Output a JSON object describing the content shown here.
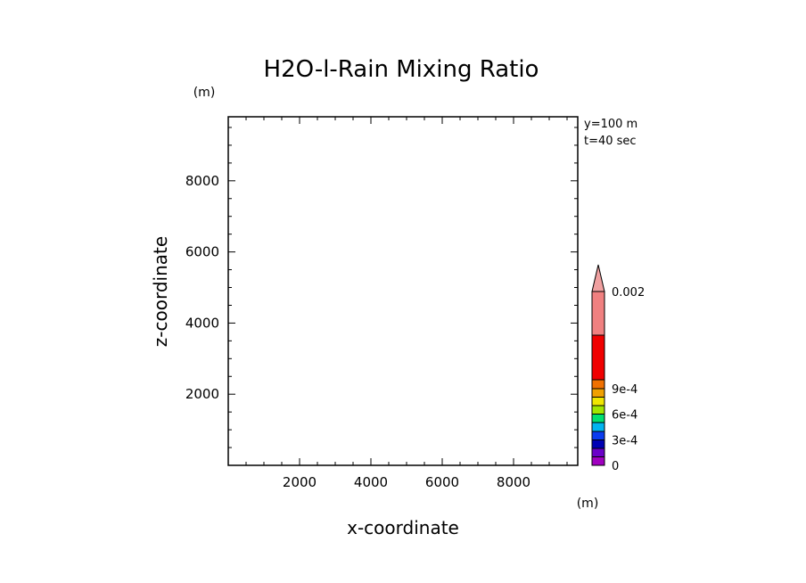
{
  "chart_data": {
    "type": "heatmap",
    "title": "H2O-l-Rain Mixing Ratio",
    "xlabel": "x-coordinate",
    "ylabel": "z-coordinate",
    "x_unit": "(m)",
    "y_unit": "(m)",
    "xlim": [
      0,
      9800
    ],
    "ylim": [
      0,
      9800
    ],
    "x_ticks": [
      2000,
      4000,
      6000,
      8000
    ],
    "y_ticks": [
      2000,
      4000,
      6000,
      8000
    ],
    "annotations": [
      "y=100 m",
      "t=40 sec"
    ],
    "field_values": [],
    "colorbar": {
      "levels": [
        0,
        0.0001,
        0.0002,
        0.0003,
        0.0004,
        0.0005,
        0.0006,
        0.0007,
        0.0008,
        0.0009,
        0.001,
        0.0015,
        0.002
      ],
      "colors": [
        "#a000c0",
        "#6a00c8",
        "#0000b4",
        "#0a3cf0",
        "#00b4f0",
        "#00e070",
        "#a0e600",
        "#f0e600",
        "#f0a000",
        "#f07000",
        "#f00000",
        "#f08080"
      ],
      "overflow_color": "#f0a0a0",
      "tick_labels": [
        {
          "level": 0,
          "label": "0"
        },
        {
          "level": 0.0003,
          "label": "3e-4"
        },
        {
          "level": 0.0006,
          "label": "6e-4"
        },
        {
          "level": 0.0009,
          "label": "9e-4"
        },
        {
          "level": 0.002,
          "label": "0.002"
        }
      ]
    }
  }
}
